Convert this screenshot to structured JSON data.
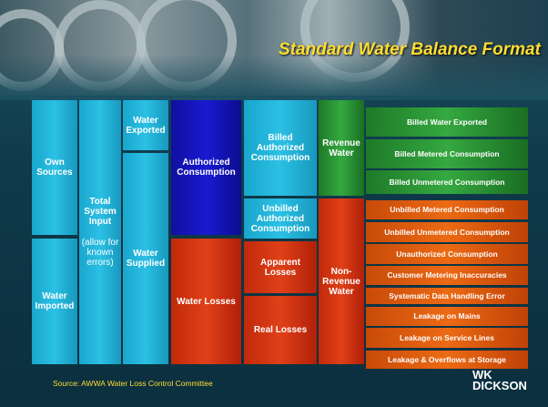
{
  "title": "Standard  Water Balance Format",
  "inputs": [
    "Own Sources",
    "Water Imported"
  ],
  "system_input": {
    "label": "Total System Input",
    "note": "(allow for known errors)"
  },
  "supply": [
    "Water Exported",
    "Water Supplied"
  ],
  "consumption": [
    "Authorized Consumption",
    "Water Losses"
  ],
  "components": [
    "Billed Authorized Consumption",
    "Unbilled Authorized Consumption",
    "Apparent Losses",
    "Real Losses"
  ],
  "revenue": [
    "Revenue Water",
    "Non-Revenue Water"
  ],
  "details": [
    "Billed Water Exported",
    "Billed Metered Consumption",
    "Billed Unmetered Consumption",
    "Unbilled Metered Consumption",
    "Unbilled Unmetered Consumption",
    "Unauthorized Consumption",
    "Customer Metering Inaccuracies",
    "Systematic Data Handling Error",
    "Leakage on Mains",
    "Leakage on Service Lines",
    "Leakage & Overflows at Storage"
  ],
  "source": "Source: AWWA Water Loss Control Committee",
  "logo": {
    "top": "WK",
    "bottom": "DICKSON"
  }
}
